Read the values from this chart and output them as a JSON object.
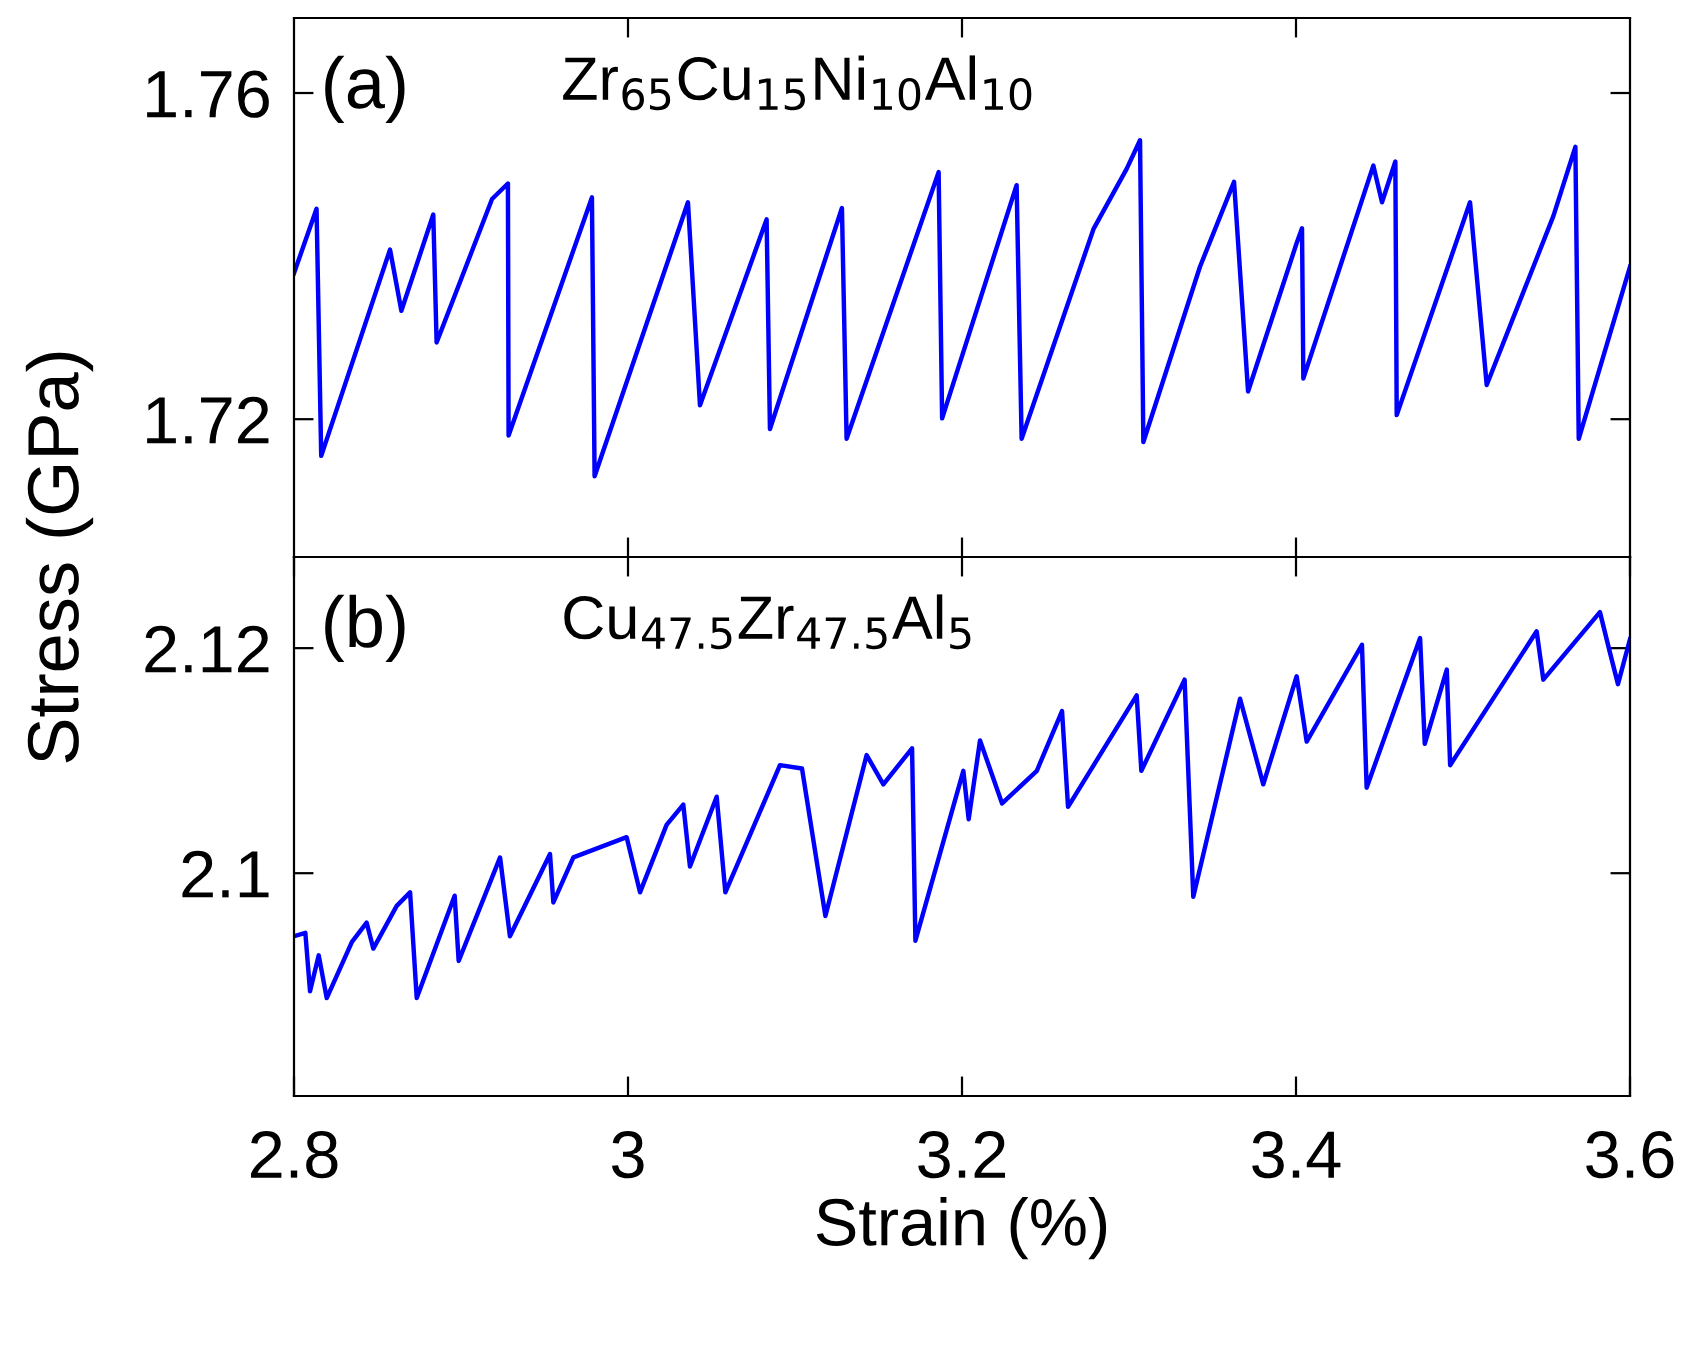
{
  "chart_data": [
    {
      "type": "line",
      "ylabel": "Stress (GPa)",
      "annotations": [
        "(a)",
        "Zr$_{65}$Cu$_{15}$Ni$_{10}$Al$_{10}$"
      ],
      "xlim": [
        2.8,
        3.6
      ],
      "xticks": [
        {
          "value": 3.0,
          "label": null
        },
        {
          "value": 3.2,
          "label": null
        },
        {
          "value": 3.4,
          "label": null
        }
      ],
      "ylim": [
        1.7031,
        1.7692
      ],
      "yticks": [
        1.72,
        1.76
      ],
      "tick_labels": "y",
      "grid": false,
      "legend": false,
      "series": [
        {
          "color": "#0000ff",
          "x": [
            2.8,
            2.8135,
            2.8163,
            2.8575,
            2.8643,
            2.8834,
            2.8854,
            2.9186,
            2.9281,
            2.9285,
            2.9784,
            2.98,
            3.0359,
            3.0431,
            3.083,
            3.085,
            3.1281,
            3.1309,
            3.186,
            3.1881,
            3.2327,
            3.2357,
            3.2787,
            3.2986,
            3.3066,
            3.3086,
            3.3425,
            3.3629,
            3.3713,
            3.4004,
            3.4036,
            3.4044,
            3.4463,
            3.4515,
            3.4595,
            3.4603,
            3.5042,
            3.5142,
            3.5541,
            3.5673,
            3.5693,
            3.6
          ],
          "values": [
            1.7379,
            1.7458,
            1.7155,
            1.7408,
            1.7333,
            1.7451,
            1.7294,
            1.747,
            1.7489,
            1.718,
            1.7472,
            1.713,
            1.7466,
            1.7217,
            1.7445,
            1.7188,
            1.7459,
            1.7176,
            1.7503,
            1.7201,
            1.7487,
            1.7176,
            1.7433,
            1.7507,
            1.7542,
            1.7172,
            1.7387,
            1.7491,
            1.7234,
            1.7416,
            1.7434,
            1.725,
            1.7511,
            1.7466,
            1.7516,
            1.7205,
            1.7466,
            1.7242,
            1.7449,
            1.7534,
            1.7176,
            1.7387
          ]
        }
      ]
    },
    {
      "type": "line",
      "xlabel": "Strain (%)",
      "annotations": [
        "(b)",
        "Cu$_{47.5}$Zr$_{47.5}$Al$_{5}$"
      ],
      "xlim": [
        2.8,
        3.6
      ],
      "xticks": [
        2.8,
        3,
        3.2,
        3.4,
        3.6
      ],
      "ylim": [
        2.0802,
        2.1281
      ],
      "yticks": [
        2.1,
        2.12
      ],
      "grid": false,
      "legend": false,
      "series": [
        {
          "color": "#0000ff",
          "x": [
            2.8,
            2.8068,
            2.8096,
            2.8148,
            2.8196,
            2.8347,
            2.8435,
            2.8475,
            2.8615,
            2.8695,
            2.8735,
            2.8962,
            2.8986,
            2.9234,
            2.9293,
            2.9533,
            2.9553,
            2.9673,
            2.9992,
            3.0072,
            3.0231,
            3.0331,
            3.0371,
            3.0531,
            3.0583,
            3.091,
            3.1042,
            3.1182,
            3.1429,
            3.1529,
            3.1701,
            3.1721,
            3.2008,
            3.204,
            3.2108,
            3.224,
            3.2448,
            3.2599,
            3.2635,
            3.3046,
            3.3074,
            3.3333,
            3.3385,
            3.3665,
            3.3804,
            3.4004,
            3.4064,
            3.4395,
            3.4423,
            3.4743,
            3.4771,
            3.4903,
            3.4923,
            3.5441,
            3.5481,
            3.582,
            3.588,
            3.5928,
            3.6
          ],
          "values": [
            2.0944,
            2.0947,
            2.0895,
            2.0927,
            2.0889,
            2.0939,
            2.0956,
            2.0933,
            2.0971,
            2.0983,
            2.0889,
            2.098,
            2.0922,
            2.1014,
            2.0944,
            2.1017,
            2.0974,
            2.1014,
            2.1032,
            2.0983,
            2.1043,
            2.1061,
            2.1006,
            2.1068,
            2.0983,
            2.1096,
            2.1093,
            2.0962,
            2.1105,
            2.1079,
            2.1111,
            2.094,
            2.1091,
            2.1048,
            2.1118,
            2.1062,
            2.1091,
            2.1144,
            2.1059,
            2.1158,
            2.1091,
            2.1172,
            2.0979,
            2.1155,
            2.1079,
            2.1175,
            2.1117,
            2.1203,
            2.1076,
            2.1209,
            2.1115,
            2.1181,
            2.1096,
            2.1215,
            2.1172,
            2.1232,
            2.1196,
            2.1168,
            2.1208
          ]
        }
      ]
    }
  ]
}
